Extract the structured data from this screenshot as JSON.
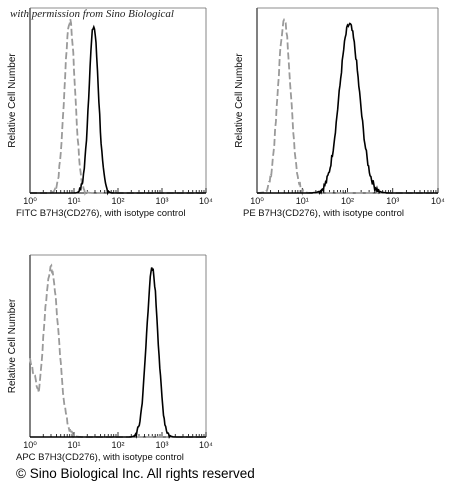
{
  "watermark": "with permission from Sino Biological",
  "footer": "© Sino Biological Inc. All rights reserved",
  "colors": {
    "isotype": "#9a9a9a",
    "stained": "#000000",
    "axis": "#000000"
  },
  "chart_data": [
    {
      "type": "line",
      "title": "",
      "xlabel": "FITC  B7H3(CD276),  with isotype control",
      "ylabel": "Relative Cell Number",
      "x_scale": "log",
      "xlim": [
        1,
        10000
      ],
      "x_ticks": [
        "10⁰",
        "10¹",
        "10²",
        "10³",
        "10⁴"
      ],
      "grid": false,
      "legend": "none",
      "series": [
        {
          "style": "dashed",
          "color": "#9a9a9a",
          "peak_x": 8,
          "log_sigma": 0.12,
          "peak_y": 0.93,
          "x": [
            4,
            5,
            6,
            7,
            8,
            9,
            10,
            11,
            13,
            16
          ],
          "y": [
            0.02,
            0.12,
            0.38,
            0.72,
            0.93,
            0.86,
            0.7,
            0.42,
            0.2,
            0.03
          ]
        },
        {
          "style": "solid",
          "color": "#000000",
          "peak_x": 28,
          "log_sigma": 0.11,
          "peak_y": 0.9,
          "x": [
            14,
            18,
            22,
            25,
            28,
            32,
            36,
            42,
            50,
            60
          ],
          "y": [
            0.02,
            0.14,
            0.46,
            0.78,
            0.9,
            0.82,
            0.56,
            0.28,
            0.08,
            0.02
          ]
        }
      ]
    },
    {
      "type": "line",
      "title": "",
      "xlabel": "PE B7H3(CD276),  with isotype control",
      "ylabel": "Relative Cell Number",
      "x_scale": "log",
      "xlim": [
        1,
        10000
      ],
      "x_ticks": [
        "10⁰",
        "10¹",
        "10²",
        "10³",
        "10⁴"
      ],
      "grid": false,
      "legend": "none",
      "series": [
        {
          "style": "dashed",
          "color": "#9a9a9a",
          "peak_x": 4,
          "log_sigma": 0.14,
          "peak_y": 0.93,
          "x": [
            1.5,
            2,
            3,
            4,
            5,
            6,
            8,
            10
          ],
          "y": [
            0.02,
            0.16,
            0.6,
            0.93,
            0.84,
            0.55,
            0.18,
            0.03
          ]
        },
        {
          "style": "solid",
          "color": "#000000",
          "peak_x": 110,
          "log_sigma": 0.22,
          "peak_y": 0.91,
          "x": [
            25,
            40,
            60,
            80,
            110,
            150,
            200,
            300,
            450
          ],
          "y": [
            0.02,
            0.12,
            0.45,
            0.78,
            0.91,
            0.85,
            0.58,
            0.2,
            0.02
          ]
        }
      ]
    },
    {
      "type": "line",
      "title": "",
      "xlabel": "APC B7H3(CD276),  with isotype control",
      "ylabel": "Relative Cell Number",
      "x_scale": "log",
      "xlim": [
        1,
        10000
      ],
      "x_ticks": [
        "10⁰",
        "10¹",
        "10²",
        "10³",
        "10⁴"
      ],
      "grid": false,
      "legend": "none",
      "series": [
        {
          "style": "dashed",
          "color": "#9a9a9a",
          "peak_x": 3,
          "log_sigma": 0.17,
          "peak_y": 0.93,
          "shoulder_y": 0.4,
          "x": [
            1,
            1.3,
            1.8,
            2.5,
            3,
            3.5,
            4.5,
            6,
            8,
            10
          ],
          "y": [
            0.4,
            0.36,
            0.5,
            0.84,
            0.93,
            0.85,
            0.6,
            0.28,
            0.06,
            0.02
          ]
        },
        {
          "style": "solid",
          "color": "#000000",
          "peak_x": 600,
          "log_sigma": 0.13,
          "peak_y": 0.92,
          "x": [
            200,
            300,
            400,
            500,
            600,
            750,
            900,
            1100,
            1500
          ],
          "y": [
            0.02,
            0.14,
            0.5,
            0.85,
            0.92,
            0.8,
            0.5,
            0.2,
            0.02
          ]
        }
      ]
    }
  ]
}
